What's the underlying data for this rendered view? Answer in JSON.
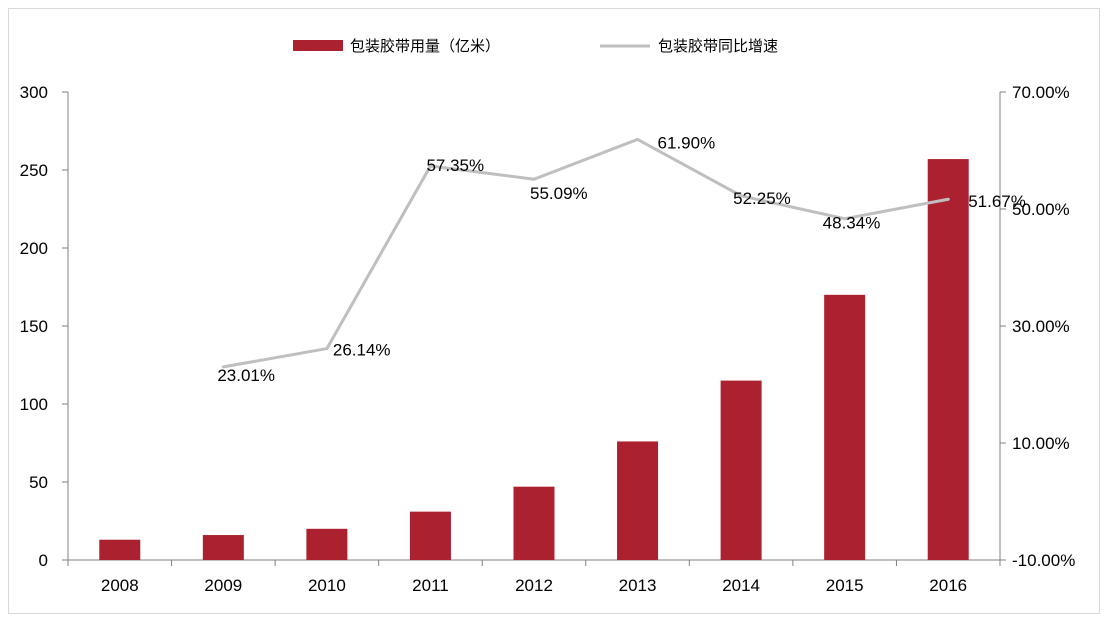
{
  "chart_data": {
    "type": "bar",
    "categories": [
      "2008",
      "2009",
      "2010",
      "2011",
      "2012",
      "2013",
      "2014",
      "2015",
      "2016"
    ],
    "series": [
      {
        "name": "包装胶带用量（亿米）",
        "type": "bar",
        "axis": "left",
        "color": "#ab212f",
        "values": [
          13,
          16,
          20,
          31,
          47,
          76,
          115,
          170,
          257
        ]
      },
      {
        "name": "包装胶带同比增速",
        "type": "line",
        "axis": "right",
        "color": "#bfbfbf",
        "values": [
          null,
          23.01,
          26.14,
          57.35,
          55.09,
          61.9,
          52.25,
          48.34,
          51.67
        ],
        "labels": [
          "",
          "23.01%",
          "26.14%",
          "57.35%",
          "55.09%",
          "61.90%",
          "52.25%",
          "48.34%",
          "51.67%"
        ]
      }
    ],
    "y_left": {
      "ylim": [
        0,
        300
      ],
      "ticks": [
        0,
        50,
        100,
        150,
        200,
        250,
        300
      ],
      "tick_labels": [
        "0",
        "50",
        "100",
        "150",
        "200",
        "250",
        "300"
      ]
    },
    "y_right": {
      "ylim": [
        -10,
        70
      ],
      "ticks": [
        -10,
        10,
        30,
        50,
        70
      ],
      "tick_labels": [
        "-10.00%",
        "10.00%",
        "30.00%",
        "50.00%",
        "70.00%"
      ]
    },
    "legend_position": "top-center",
    "grid": false
  }
}
